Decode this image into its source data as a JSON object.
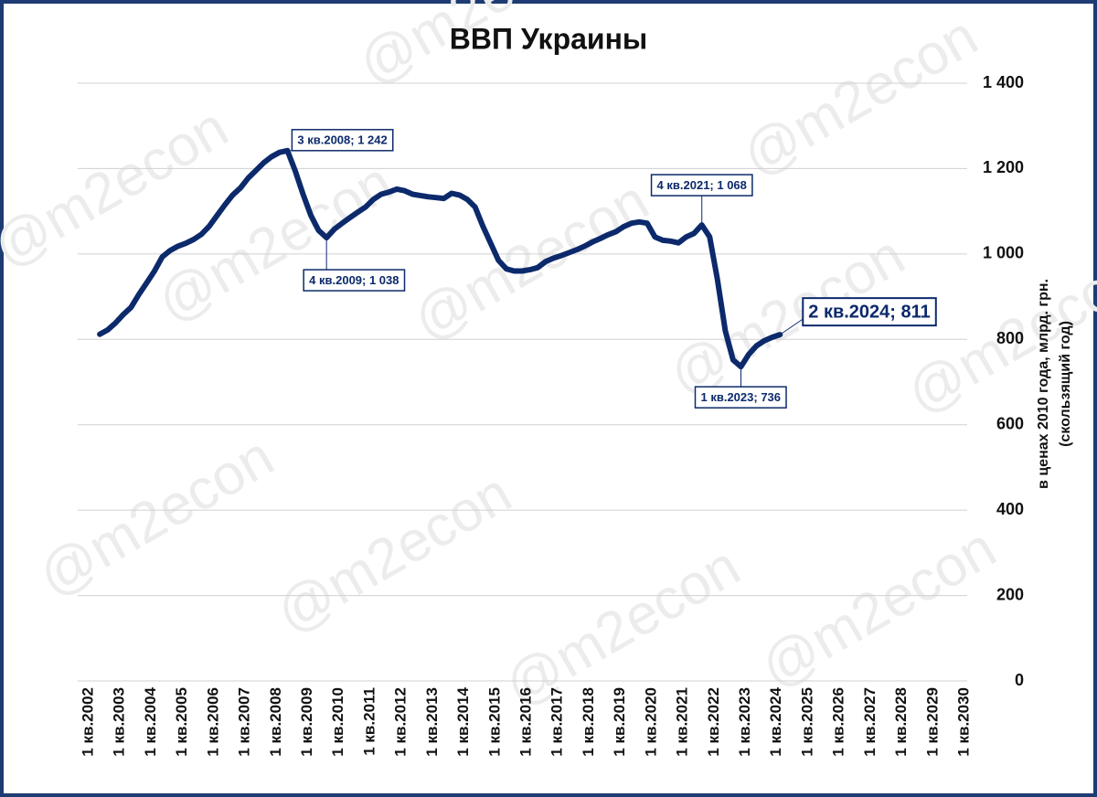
{
  "chart_data": {
    "type": "line",
    "title": "ВВП Украины",
    "watermark": "@m2econ",
    "y_label": [
      "в ценах 2010 года, млрд. грн.",
      "(скользящий год)"
    ],
    "categories": [
      "1 кв.2002",
      null,
      null,
      null,
      "1 кв.2003",
      null,
      null,
      null,
      "1 кв.2004",
      null,
      null,
      null,
      "1 кв.2005",
      null,
      null,
      null,
      "1 кв.2006",
      null,
      null,
      null,
      "1 кв.2007",
      null,
      null,
      null,
      "1 кв.2008",
      null,
      null,
      null,
      "1 кв.2009",
      null,
      null,
      null,
      "1 кв.2010",
      null,
      null,
      null,
      "1 кв.2011",
      null,
      null,
      null,
      "1 кв.2012",
      null,
      null,
      null,
      "1 кв.2013",
      null,
      null,
      null,
      "1 кв.2014",
      null,
      null,
      null,
      "1 кв.2015",
      null,
      null,
      null,
      "1 кв.2016",
      null,
      null,
      null,
      "1 кв.2017",
      null,
      null,
      null,
      "1 кв.2018",
      null,
      null,
      null,
      "1 кв.2019",
      null,
      null,
      null,
      "1 кв.2020",
      null,
      null,
      null,
      "1 кв.2021",
      null,
      null,
      null,
      "1 кв.2022",
      null,
      null,
      null,
      "1 кв.2023",
      null,
      null,
      null,
      "1 кв.2024",
      null,
      null,
      null,
      "1 кв.2025",
      null,
      null,
      null,
      "1 кв.2026",
      null,
      null,
      null,
      "1 кв.2027",
      null,
      null,
      null,
      "1 кв.2028",
      null,
      null,
      null,
      "1 кв.2029",
      null,
      null,
      null,
      "1 кв.2030"
    ],
    "series": [
      {
        "name": "ВВП",
        "color": "#0c2a6b",
        "values": [
          null,
          null,
          812,
          822,
          838,
          858,
          875,
          905,
          932,
          960,
          993,
          1008,
          1018,
          1025,
          1034,
          1046,
          1065,
          1090,
          1115,
          1138,
          1155,
          1178,
          1196,
          1214,
          1228,
          1238,
          1242,
          1195,
          1140,
          1090,
          1055,
          1038,
          1058,
          1072,
          1085,
          1098,
          1110,
          1128,
          1140,
          1145,
          1152,
          1148,
          1140,
          1137,
          1134,
          1132,
          1130,
          1142,
          1138,
          1128,
          1110,
          1065,
          1025,
          985,
          965,
          960,
          960,
          963,
          968,
          982,
          990,
          996,
          1003,
          1010,
          1018,
          1028,
          1036,
          1045,
          1052,
          1064,
          1072,
          1075,
          1072,
          1040,
          1032,
          1030,
          1026,
          1040,
          1048,
          1068,
          1040,
          940,
          820,
          752,
          736,
          765,
          785,
          797,
          805,
          811,
          null,
          null,
          null,
          null,
          null,
          null,
          null,
          null,
          null,
          null,
          null,
          null,
          null,
          null,
          null,
          null,
          null,
          null,
          null,
          null,
          null,
          null,
          null
        ],
        "value_labels": [
          null,
          null,
          null,
          null,
          null,
          null,
          null,
          null,
          null,
          null,
          null,
          null,
          null,
          null,
          null,
          null,
          null,
          null,
          null,
          null,
          null,
          null,
          null,
          null,
          null,
          null,
          "3 кв.2008; 1 242",
          null,
          null,
          null,
          null,
          "4 кв.2009; 1 038",
          null,
          null,
          null,
          null,
          null,
          null,
          null,
          null,
          null,
          null,
          null,
          null,
          null,
          null,
          null,
          null,
          null,
          null,
          null,
          null,
          null,
          null,
          null,
          null,
          null,
          null,
          null,
          null,
          null,
          null,
          null,
          null,
          null,
          null,
          null,
          null,
          null,
          null,
          null,
          null,
          null,
          null,
          null,
          null,
          null,
          null,
          null,
          "4 кв.2021; 1 068",
          null,
          null,
          null,
          null,
          "1 кв.2023; 736",
          null,
          null,
          null,
          null,
          "2 кв.2024; 811",
          null,
          null,
          null,
          null,
          null,
          null,
          null,
          null,
          null,
          null,
          null,
          null,
          null,
          null,
          null,
          null,
          null,
          null,
          null,
          null,
          null,
          null,
          null
        ]
      }
    ],
    "ylim": [
      0,
      1400
    ],
    "yticks": [
      0,
      200,
      400,
      600,
      800,
      {
        "value": 1000,
        "label": "1 000"
      },
      {
        "value": 1200,
        "label": "1 200"
      },
      {
        "value": 1400,
        "label": "1 400"
      }
    ],
    "grid": true
  }
}
